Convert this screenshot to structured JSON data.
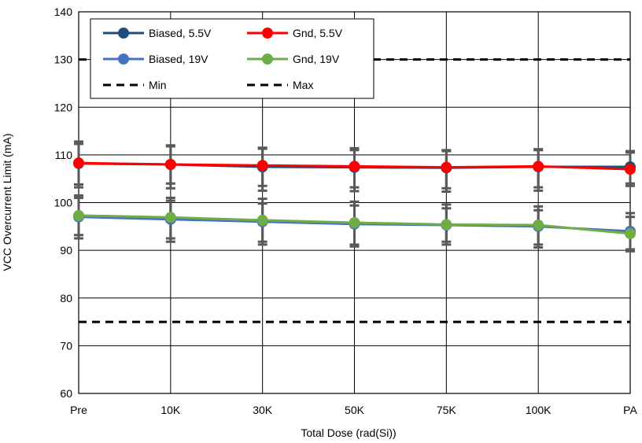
{
  "chart_data": {
    "type": "line",
    "categories": [
      "Pre",
      "10K",
      "30K",
      "50K",
      "75K",
      "100K",
      "PA"
    ],
    "xlabel": "Total Dose (rad(Si))",
    "ylabel": "VCC Overcurrent Limit (mA)",
    "ylim": [
      60,
      140
    ],
    "yticks": [
      60,
      70,
      80,
      90,
      100,
      110,
      120,
      130,
      140
    ],
    "grid": true,
    "legend_position": "top-left",
    "series": [
      {
        "name": "Biased, 5.5V",
        "color": "#1f4e79",
        "style": "solid-marker",
        "values": [
          108.2,
          108.0,
          107.5,
          107.4,
          107.3,
          107.5,
          107.5
        ]
      },
      {
        "name": "Gnd, 5.5V",
        "color": "#ff0000",
        "style": "solid-marker",
        "values": [
          108.3,
          108.0,
          107.8,
          107.6,
          107.4,
          107.6,
          107.0
        ]
      },
      {
        "name": "Biased, 19V",
        "color": "#4472c4",
        "style": "solid-marker",
        "values": [
          97.0,
          96.5,
          96.0,
          95.5,
          95.3,
          95.0,
          94.0
        ]
      },
      {
        "name": "Gnd, 19V",
        "color": "#70ad47",
        "style": "solid-marker",
        "values": [
          97.3,
          96.9,
          96.3,
          95.8,
          95.4,
          95.3,
          93.5
        ]
      },
      {
        "name": "Min",
        "color": "#000000",
        "style": "dashed",
        "values": [
          75,
          75,
          75,
          75,
          75,
          75,
          75
        ]
      },
      {
        "name": "Max",
        "color": "#000000",
        "style": "dashed",
        "values": [
          130,
          130,
          130,
          130,
          130,
          130,
          130
        ]
      }
    ],
    "error_bars": [
      {
        "series": "Biased, 5.5V",
        "lower": [
          103.2,
          103.0,
          102.5,
          102.4,
          102.3,
          102.5,
          104.0
        ],
        "upper": [
          112.8,
          112.0,
          111.5,
          111.4,
          111.0,
          111.2,
          110.5
        ]
      },
      {
        "series": "Gnd, 5.5V",
        "lower": [
          103.8,
          104.0,
          103.5,
          103.2,
          103.0,
          103.2,
          103.5
        ],
        "upper": [
          112.3,
          111.8,
          111.3,
          111.0,
          110.8,
          111.0,
          110.8
        ]
      },
      {
        "series": "Biased, 19V",
        "lower": [
          92.5,
          91.8,
          91.2,
          90.8,
          91.2,
          90.6,
          89.8
        ],
        "upper": [
          101.5,
          101.0,
          100.8,
          100.2,
          99.6,
          99.2,
          97.8
        ]
      },
      {
        "series": "Gnd, 19V",
        "lower": [
          93.2,
          92.5,
          91.8,
          91.2,
          91.8,
          91.2,
          90.2
        ],
        "upper": [
          101.0,
          100.4,
          99.8,
          99.4,
          98.8,
          98.4,
          97.0
        ]
      }
    ]
  }
}
